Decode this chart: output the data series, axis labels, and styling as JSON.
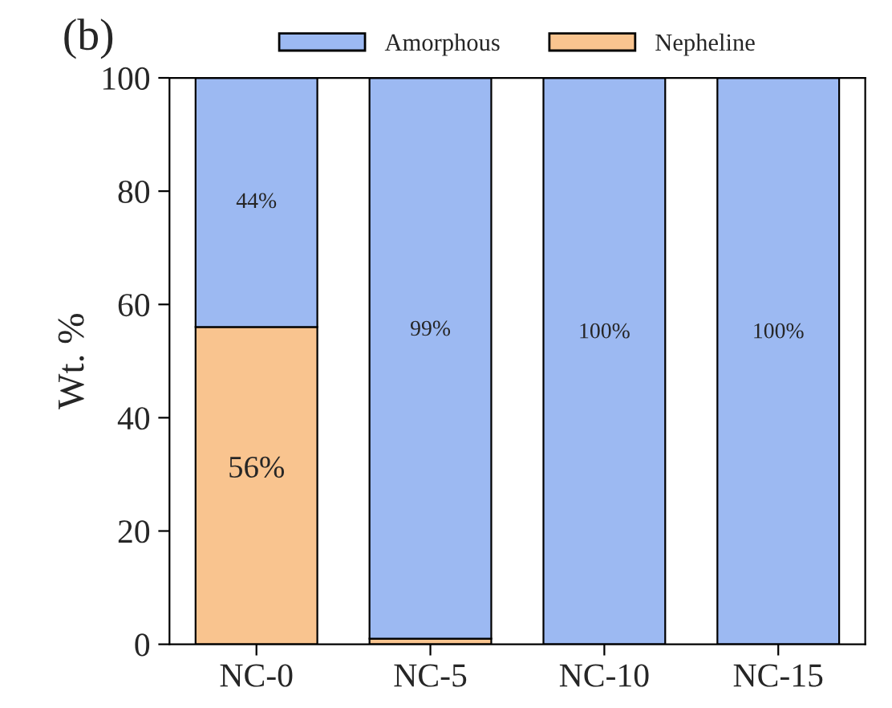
{
  "chart_data": {
    "type": "bar",
    "title": "(b)",
    "ylabel": "Wt. %",
    "categories": [
      "NC-0",
      "NC-5",
      "NC-10",
      "NC-15"
    ],
    "stacked": true,
    "series": [
      {
        "name": "Nepheline",
        "color": "#f9c48f",
        "values": [
          56,
          1,
          0,
          0
        ],
        "value_labels": [
          "56%",
          null,
          null,
          null
        ]
      },
      {
        "name": "Amorphous",
        "color": "#9cb9f2",
        "values": [
          44,
          99,
          100,
          100
        ],
        "value_labels": [
          "44%",
          "99%",
          "100%",
          "100%"
        ]
      }
    ],
    "ylim": [
      0,
      100
    ],
    "yticks": [
      0,
      20,
      40,
      60,
      80,
      100
    ],
    "grid": false,
    "legend": "top"
  }
}
